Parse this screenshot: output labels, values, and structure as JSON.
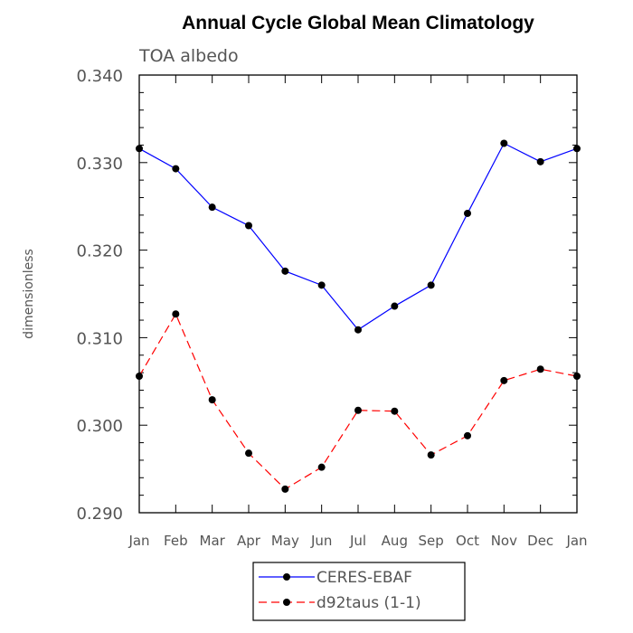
{
  "chart_data": {
    "type": "line",
    "title": "Annual Cycle Global Mean Climatology",
    "subtitle": "TOA albedo",
    "xlabel": "",
    "ylabel": "dimensionless",
    "categories": [
      "Jan",
      "Feb",
      "Mar",
      "Apr",
      "May",
      "Jun",
      "Jul",
      "Aug",
      "Sep",
      "Oct",
      "Nov",
      "Dec",
      "Jan"
    ],
    "ylim": [
      0.29,
      0.34
    ],
    "yticks": [
      "0.290",
      "0.300",
      "0.310",
      "0.320",
      "0.330",
      "0.340"
    ],
    "ytick_values": [
      0.29,
      0.3,
      0.31,
      0.32,
      0.33,
      0.34
    ],
    "series": [
      {
        "name": "CERES-EBAF",
        "color": "#0000ff",
        "dash": "solid",
        "values": [
          0.3316,
          0.3293,
          0.3249,
          0.3228,
          0.3176,
          0.316,
          0.3109,
          0.3136,
          0.316,
          0.3242,
          0.3322,
          0.3301,
          0.3316
        ]
      },
      {
        "name": "d92taus (1-1)",
        "color": "#ff0000",
        "dash": "dashed",
        "values": [
          0.3056,
          0.3127,
          0.3029,
          0.2968,
          0.2927,
          0.2952,
          0.3017,
          0.3016,
          0.2966,
          0.2988,
          0.3051,
          0.3064,
          0.3056
        ]
      }
    ],
    "legend_position": "bottom-center",
    "marker_color": "#000000"
  }
}
